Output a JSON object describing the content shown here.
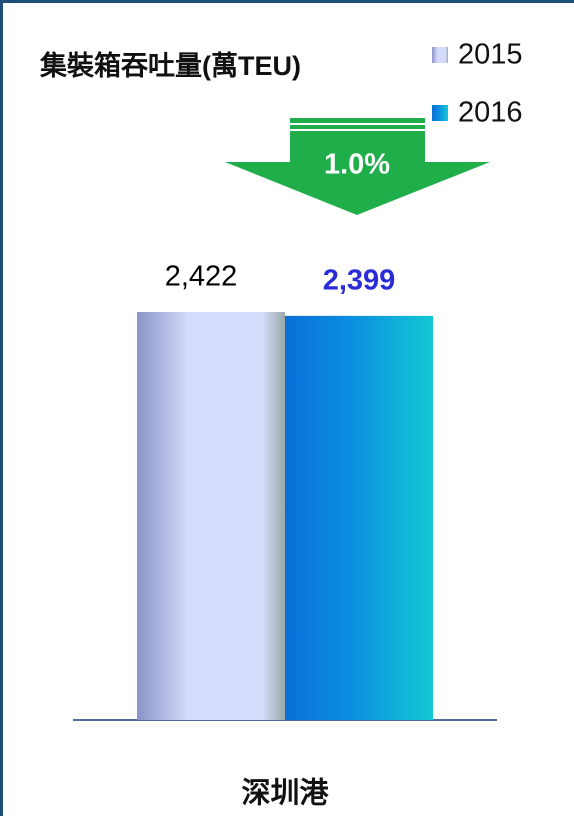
{
  "chart_data": {
    "type": "bar",
    "title": "集裝箱吞吐量(萬TEU)",
    "annotation": "1.0%",
    "categories": [
      "深圳港"
    ],
    "series": [
      {
        "name": "2015",
        "color": "#d3ddfb",
        "label_color": "#000000",
        "values": [
          2422
        ],
        "value_labels": [
          "2,422"
        ]
      },
      {
        "name": "2016",
        "color": "#14c8d4",
        "label_color": "#2b2bd8",
        "values": [
          2399
        ],
        "value_labels": [
          "2,399"
        ]
      }
    ]
  }
}
